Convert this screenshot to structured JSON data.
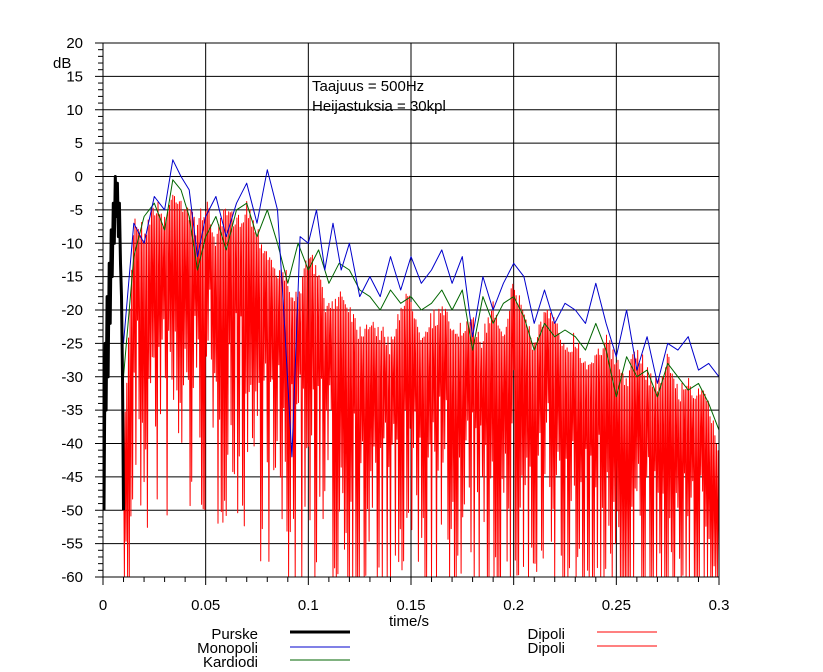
{
  "chart_data": {
    "type": "line",
    "title": "",
    "xlabel": "time/s",
    "ylabel": "dB",
    "xlim": [
      0,
      0.3
    ],
    "ylim": [
      -60,
      20
    ],
    "grid": true,
    "x_ticks": [
      "0",
      "0.05",
      "0.1",
      "0.15",
      "0.2",
      "0.25",
      "0.3"
    ],
    "y_ticks": [
      "20",
      "15",
      "10",
      "5",
      "0",
      "-5",
      "-10",
      "-15",
      "-20",
      "-25",
      "-30",
      "-35",
      "-40",
      "-45",
      "-50",
      "-55",
      "-60"
    ],
    "annotations": [
      "Taajuus = 500Hz",
      "Heijastuksia = 30kpl"
    ],
    "legend_position": "bottom",
    "series": [
      {
        "name": "Purske",
        "color": "#000000",
        "points": [
          [
            0.0005,
            -50
          ],
          [
            0.001,
            -25
          ],
          [
            0.0015,
            -35
          ],
          [
            0.002,
            -18
          ],
          [
            0.0025,
            -30
          ],
          [
            0.003,
            -13
          ],
          [
            0.0035,
            -22
          ],
          [
            0.004,
            -8
          ],
          [
            0.0045,
            -15
          ],
          [
            0.005,
            -4
          ],
          [
            0.0055,
            -10
          ],
          [
            0.006,
            0
          ],
          [
            0.0065,
            -6
          ],
          [
            0.007,
            -1
          ],
          [
            0.0075,
            -9
          ],
          [
            0.008,
            -4
          ],
          [
            0.0085,
            -13
          ],
          [
            0.009,
            -18
          ],
          [
            0.0095,
            -30
          ],
          [
            0.01,
            -50
          ]
        ]
      },
      {
        "name": "Monopoli",
        "color": "#0000cc",
        "points": [
          [
            0.01,
            -25
          ],
          [
            0.015,
            -7
          ],
          [
            0.02,
            -10
          ],
          [
            0.025,
            -3
          ],
          [
            0.03,
            -5
          ],
          [
            0.034,
            2.5
          ],
          [
            0.038,
            0
          ],
          [
            0.042,
            -2
          ],
          [
            0.046,
            -12
          ],
          [
            0.05,
            -6
          ],
          [
            0.055,
            -3
          ],
          [
            0.06,
            -9
          ],
          [
            0.065,
            -4
          ],
          [
            0.07,
            -1
          ],
          [
            0.075,
            -7
          ],
          [
            0.08,
            1
          ],
          [
            0.085,
            -5
          ],
          [
            0.088,
            -20
          ],
          [
            0.092,
            -42
          ],
          [
            0.096,
            -9
          ],
          [
            0.1,
            -10
          ],
          [
            0.104,
            -5
          ],
          [
            0.108,
            -14
          ],
          [
            0.112,
            -7
          ],
          [
            0.116,
            -14
          ],
          [
            0.12,
            -10
          ],
          [
            0.125,
            -18
          ],
          [
            0.13,
            -15
          ],
          [
            0.135,
            -18
          ],
          [
            0.14,
            -12
          ],
          [
            0.145,
            -17
          ],
          [
            0.15,
            -12
          ],
          [
            0.155,
            -16
          ],
          [
            0.16,
            -14
          ],
          [
            0.165,
            -11
          ],
          [
            0.17,
            -16
          ],
          [
            0.175,
            -12
          ],
          [
            0.18,
            -24
          ],
          [
            0.185,
            -15
          ],
          [
            0.19,
            -20
          ],
          [
            0.195,
            -16
          ],
          [
            0.2,
            -13
          ],
          [
            0.205,
            -15
          ],
          [
            0.21,
            -22
          ],
          [
            0.215,
            -17
          ],
          [
            0.22,
            -22
          ],
          [
            0.225,
            -19
          ],
          [
            0.23,
            -20
          ],
          [
            0.235,
            -22
          ],
          [
            0.24,
            -16
          ],
          [
            0.245,
            -22
          ],
          [
            0.25,
            -27
          ],
          [
            0.255,
            -20
          ],
          [
            0.26,
            -29
          ],
          [
            0.265,
            -24
          ],
          [
            0.27,
            -31
          ],
          [
            0.275,
            -25
          ],
          [
            0.28,
            -26
          ],
          [
            0.285,
            -24
          ],
          [
            0.29,
            -29
          ],
          [
            0.295,
            -28
          ],
          [
            0.3,
            -30
          ]
        ]
      },
      {
        "name": "Kardiodi",
        "color": "#006600",
        "points": [
          [
            0.01,
            -30
          ],
          [
            0.015,
            -12
          ],
          [
            0.02,
            -6
          ],
          [
            0.025,
            -4
          ],
          [
            0.03,
            -8
          ],
          [
            0.034,
            -0.5
          ],
          [
            0.038,
            -2
          ],
          [
            0.042,
            -6
          ],
          [
            0.046,
            -14
          ],
          [
            0.05,
            -9
          ],
          [
            0.055,
            -6
          ],
          [
            0.06,
            -11
          ],
          [
            0.065,
            -5
          ],
          [
            0.07,
            -4
          ],
          [
            0.075,
            -9
          ],
          [
            0.08,
            -5
          ],
          [
            0.085,
            -10
          ],
          [
            0.09,
            -16
          ],
          [
            0.095,
            -10
          ],
          [
            0.1,
            -14
          ],
          [
            0.105,
            -11
          ],
          [
            0.11,
            -16
          ],
          [
            0.115,
            -13
          ],
          [
            0.12,
            -14
          ],
          [
            0.125,
            -17
          ],
          [
            0.13,
            -18
          ],
          [
            0.135,
            -20
          ],
          [
            0.14,
            -17
          ],
          [
            0.145,
            -19
          ],
          [
            0.15,
            -18
          ],
          [
            0.155,
            -20
          ],
          [
            0.16,
            -19
          ],
          [
            0.165,
            -17
          ],
          [
            0.17,
            -20
          ],
          [
            0.175,
            -17
          ],
          [
            0.18,
            -26
          ],
          [
            0.185,
            -18
          ],
          [
            0.19,
            -22
          ],
          [
            0.195,
            -19
          ],
          [
            0.2,
            -18
          ],
          [
            0.205,
            -21
          ],
          [
            0.21,
            -26
          ],
          [
            0.215,
            -22
          ],
          [
            0.22,
            -24
          ],
          [
            0.225,
            -23
          ],
          [
            0.23,
            -24
          ],
          [
            0.235,
            -26
          ],
          [
            0.24,
            -22
          ],
          [
            0.245,
            -26
          ],
          [
            0.25,
            -33
          ],
          [
            0.255,
            -27
          ],
          [
            0.26,
            -30
          ],
          [
            0.265,
            -29
          ],
          [
            0.27,
            -33
          ],
          [
            0.275,
            -28
          ],
          [
            0.28,
            -30
          ],
          [
            0.285,
            -32
          ],
          [
            0.29,
            -31
          ],
          [
            0.295,
            -34
          ],
          [
            0.3,
            -38
          ]
        ]
      },
      {
        "name": "Dipoli",
        "color": "#ff0000",
        "envelope": [
          [
            0.01,
            -40
          ],
          [
            0.015,
            -5
          ],
          [
            0.02,
            -7
          ],
          [
            0.025,
            -3
          ],
          [
            0.03,
            -5
          ],
          [
            0.035,
            -1
          ],
          [
            0.04,
            -3
          ],
          [
            0.045,
            -6
          ],
          [
            0.05,
            -3
          ],
          [
            0.055,
            -8
          ],
          [
            0.06,
            -4
          ],
          [
            0.065,
            -6
          ],
          [
            0.07,
            -3
          ],
          [
            0.075,
            -7
          ],
          [
            0.08,
            -10
          ],
          [
            0.085,
            -13
          ],
          [
            0.09,
            -14
          ],
          [
            0.095,
            -18
          ],
          [
            0.1,
            -10
          ],
          [
            0.105,
            -14
          ],
          [
            0.11,
            -19
          ],
          [
            0.115,
            -16
          ],
          [
            0.12,
            -18
          ],
          [
            0.125,
            -22
          ],
          [
            0.13,
            -20
          ],
          [
            0.135,
            -22
          ],
          [
            0.14,
            -24
          ],
          [
            0.145,
            -18
          ],
          [
            0.15,
            -17
          ],
          [
            0.155,
            -22
          ],
          [
            0.16,
            -20
          ],
          [
            0.165,
            -19
          ],
          [
            0.17,
            -21
          ],
          [
            0.175,
            -22
          ],
          [
            0.18,
            -21
          ],
          [
            0.185,
            -23
          ],
          [
            0.19,
            -18
          ],
          [
            0.195,
            -22
          ],
          [
            0.2,
            -15
          ],
          [
            0.205,
            -19
          ],
          [
            0.21,
            -24
          ],
          [
            0.215,
            -19
          ],
          [
            0.22,
            -21
          ],
          [
            0.225,
            -24
          ],
          [
            0.23,
            -23
          ],
          [
            0.235,
            -27
          ],
          [
            0.24,
            -25
          ],
          [
            0.245,
            -23
          ],
          [
            0.25,
            -27
          ],
          [
            0.255,
            -29
          ],
          [
            0.26,
            -25
          ],
          [
            0.265,
            -28
          ],
          [
            0.27,
            -30
          ],
          [
            0.275,
            -26
          ],
          [
            0.28,
            -31
          ],
          [
            0.285,
            -30
          ],
          [
            0.29,
            -31
          ],
          [
            0.295,
            -33
          ],
          [
            0.3,
            -40
          ]
        ]
      },
      {
        "name": "Dipoli",
        "color": "#ff0000"
      }
    ]
  }
}
